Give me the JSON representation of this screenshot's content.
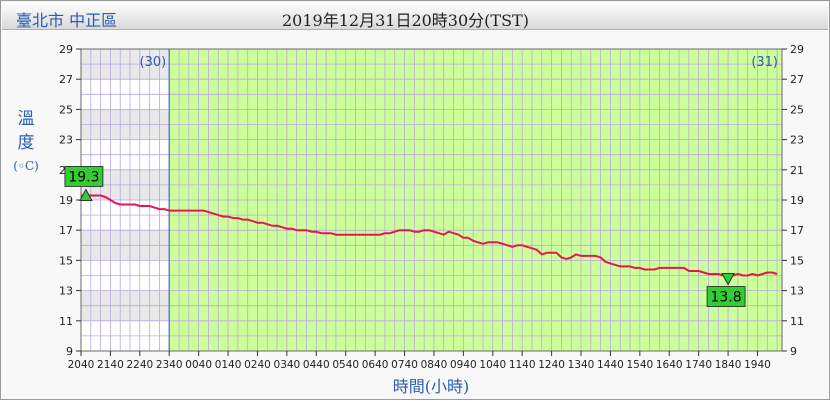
{
  "header": {
    "location": "臺北市 中正區",
    "timestamp": "2019年12月31日20時30分(TST)"
  },
  "axis_labels": {
    "y_line1": "溫",
    "y_line2": "度",
    "y_unit": "(◦C)",
    "x": "時間(小時)"
  },
  "colors": {
    "line": "#e8154f",
    "day_region": "#ccff99",
    "night_band_dark": "#e8e8e8",
    "divider": "#3b6fd8",
    "marker_fill": "#33cc33",
    "day_tag": "#2a5db0"
  },
  "chart_data": {
    "type": "line",
    "title": "",
    "xlabel": "時間(小時)",
    "ylabel": "溫度(◦C)",
    "ylim": [
      9,
      29
    ],
    "yticks": [
      9,
      11,
      13,
      15,
      17,
      19,
      21,
      23,
      25,
      27,
      29
    ],
    "x_range_minutes": [
      0,
      1430
    ],
    "x_origin_time": "2040",
    "xtick_labels": [
      "2040",
      "2140",
      "2240",
      "2340",
      "0040",
      "0140",
      "0240",
      "0340",
      "0440",
      "0540",
      "0640",
      "0740",
      "0840",
      "0940",
      "1040",
      "1140",
      "1240",
      "1340",
      "1440",
      "1540",
      "1640",
      "1740",
      "1840",
      "1940"
    ],
    "day_markers": [
      {
        "label": "(30)",
        "side": "left"
      },
      {
        "label": "(31)",
        "side": "right"
      }
    ],
    "day_boundary_minutes": 180,
    "grid": true,
    "series": [
      {
        "points": [
          [
            0,
            19.3
          ],
          [
            10,
            19.3
          ],
          [
            20,
            19.3
          ],
          [
            30,
            19.3
          ],
          [
            40,
            19.3
          ],
          [
            50,
            19.2
          ],
          [
            60,
            19.0
          ],
          [
            70,
            18.8
          ],
          [
            80,
            18.7
          ],
          [
            90,
            18.7
          ],
          [
            100,
            18.7
          ],
          [
            110,
            18.7
          ],
          [
            120,
            18.6
          ],
          [
            130,
            18.6
          ],
          [
            140,
            18.6
          ],
          [
            150,
            18.5
          ],
          [
            160,
            18.4
          ],
          [
            170,
            18.4
          ],
          [
            180,
            18.3
          ],
          [
            190,
            18.3
          ],
          [
            200,
            18.3
          ],
          [
            210,
            18.3
          ],
          [
            220,
            18.3
          ],
          [
            230,
            18.3
          ],
          [
            240,
            18.3
          ],
          [
            250,
            18.3
          ],
          [
            260,
            18.2
          ],
          [
            270,
            18.1
          ],
          [
            280,
            18.0
          ],
          [
            290,
            17.9
          ],
          [
            300,
            17.9
          ],
          [
            310,
            17.8
          ],
          [
            320,
            17.8
          ],
          [
            330,
            17.7
          ],
          [
            340,
            17.7
          ],
          [
            350,
            17.6
          ],
          [
            360,
            17.5
          ],
          [
            370,
            17.5
          ],
          [
            380,
            17.4
          ],
          [
            390,
            17.3
          ],
          [
            400,
            17.3
          ],
          [
            410,
            17.2
          ],
          [
            420,
            17.1
          ],
          [
            430,
            17.1
          ],
          [
            440,
            17.0
          ],
          [
            450,
            17.0
          ],
          [
            460,
            17.0
          ],
          [
            470,
            16.9
          ],
          [
            480,
            16.9
          ],
          [
            490,
            16.8
          ],
          [
            500,
            16.8
          ],
          [
            510,
            16.8
          ],
          [
            520,
            16.7
          ],
          [
            530,
            16.7
          ],
          [
            540,
            16.7
          ],
          [
            550,
            16.7
          ],
          [
            560,
            16.7
          ],
          [
            570,
            16.7
          ],
          [
            580,
            16.7
          ],
          [
            590,
            16.7
          ],
          [
            600,
            16.7
          ],
          [
            610,
            16.7
          ],
          [
            620,
            16.8
          ],
          [
            630,
            16.8
          ],
          [
            640,
            16.9
          ],
          [
            650,
            17.0
          ],
          [
            660,
            17.0
          ],
          [
            670,
            17.0
          ],
          [
            680,
            16.9
          ],
          [
            690,
            16.9
          ],
          [
            700,
            17.0
          ],
          [
            710,
            17.0
          ],
          [
            720,
            16.9
          ],
          [
            730,
            16.8
          ],
          [
            740,
            16.7
          ],
          [
            750,
            16.9
          ],
          [
            760,
            16.8
          ],
          [
            770,
            16.7
          ],
          [
            780,
            16.5
          ],
          [
            790,
            16.5
          ],
          [
            800,
            16.3
          ],
          [
            810,
            16.2
          ],
          [
            820,
            16.1
          ],
          [
            830,
            16.2
          ],
          [
            840,
            16.2
          ],
          [
            850,
            16.2
          ],
          [
            860,
            16.1
          ],
          [
            870,
            16.0
          ],
          [
            880,
            15.9
          ],
          [
            890,
            16.0
          ],
          [
            900,
            16.0
          ],
          [
            910,
            15.9
          ],
          [
            920,
            15.8
          ],
          [
            930,
            15.7
          ],
          [
            940,
            15.4
          ],
          [
            950,
            15.5
          ],
          [
            960,
            15.5
          ],
          [
            970,
            15.5
          ],
          [
            980,
            15.2
          ],
          [
            990,
            15.1
          ],
          [
            1000,
            15.2
          ],
          [
            1010,
            15.4
          ],
          [
            1020,
            15.3
          ],
          [
            1030,
            15.3
          ],
          [
            1040,
            15.3
          ],
          [
            1050,
            15.3
          ],
          [
            1060,
            15.2
          ],
          [
            1070,
            14.9
          ],
          [
            1080,
            14.8
          ],
          [
            1090,
            14.7
          ],
          [
            1100,
            14.6
          ],
          [
            1110,
            14.6
          ],
          [
            1120,
            14.6
          ],
          [
            1130,
            14.5
          ],
          [
            1140,
            14.5
          ],
          [
            1150,
            14.4
          ],
          [
            1160,
            14.4
          ],
          [
            1170,
            14.4
          ],
          [
            1180,
            14.5
          ],
          [
            1190,
            14.5
          ],
          [
            1200,
            14.5
          ],
          [
            1210,
            14.5
          ],
          [
            1220,
            14.5
          ],
          [
            1230,
            14.5
          ],
          [
            1240,
            14.3
          ],
          [
            1250,
            14.3
          ],
          [
            1260,
            14.3
          ],
          [
            1270,
            14.2
          ],
          [
            1280,
            14.1
          ],
          [
            1290,
            14.1
          ],
          [
            1300,
            14.1
          ],
          [
            1310,
            14.0
          ],
          [
            1320,
            13.8
          ],
          [
            1330,
            14.0
          ],
          [
            1340,
            14.1
          ],
          [
            1350,
            14.0
          ],
          [
            1360,
            14.0
          ],
          [
            1370,
            14.1
          ],
          [
            1380,
            14.0
          ],
          [
            1390,
            14.1
          ],
          [
            1400,
            14.2
          ],
          [
            1410,
            14.2
          ],
          [
            1420,
            14.1
          ]
        ]
      }
    ],
    "annotations": [
      {
        "kind": "max",
        "label": "19.3",
        "x": 10,
        "y": 19.3
      },
      {
        "kind": "min",
        "label": "13.8",
        "x": 1320,
        "y": 13.8
      }
    ]
  }
}
